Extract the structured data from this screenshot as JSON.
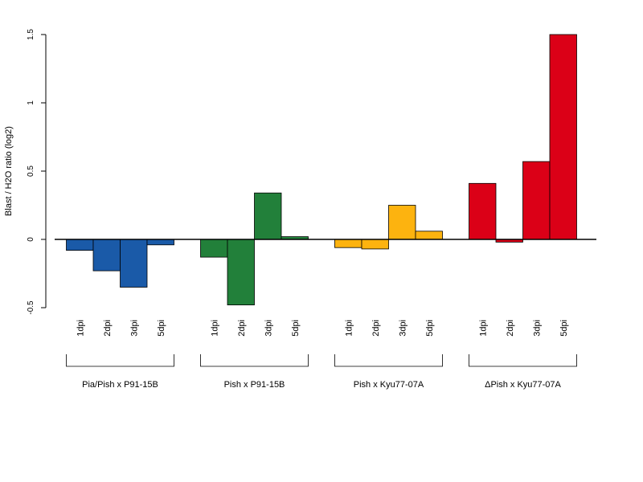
{
  "chart_data": {
    "type": "bar",
    "ylabel": "Blast / H2O ratio (log2)",
    "ylim": [
      -0.5,
      1.5
    ],
    "yticks": [
      -0.5,
      0,
      0.5,
      1,
      1.5
    ],
    "ytick_labels": [
      "-0.5",
      "0",
      "0.5",
      "1",
      "1.5"
    ],
    "categories": [
      "1dpi",
      "2dpi",
      "3dpi",
      "5dpi"
    ],
    "groups": [
      {
        "name": "Pia/Pish x P91-15B",
        "color": "#1a5aa8",
        "values": [
          -0.08,
          -0.23,
          -0.35,
          -0.04
        ]
      },
      {
        "name": "Pish x P91-15B",
        "color": "#22803a",
        "values": [
          -0.13,
          -0.48,
          0.34,
          0.02
        ]
      },
      {
        "name": "Pish x Kyu77-07A",
        "color": "#fdb30f",
        "values": [
          -0.06,
          -0.07,
          0.25,
          0.06
        ]
      },
      {
        "name": "ΔPish x Kyu77-07A",
        "color": "#db0017",
        "values": [
          0.41,
          -0.02,
          0.57,
          1.5
        ]
      }
    ]
  }
}
